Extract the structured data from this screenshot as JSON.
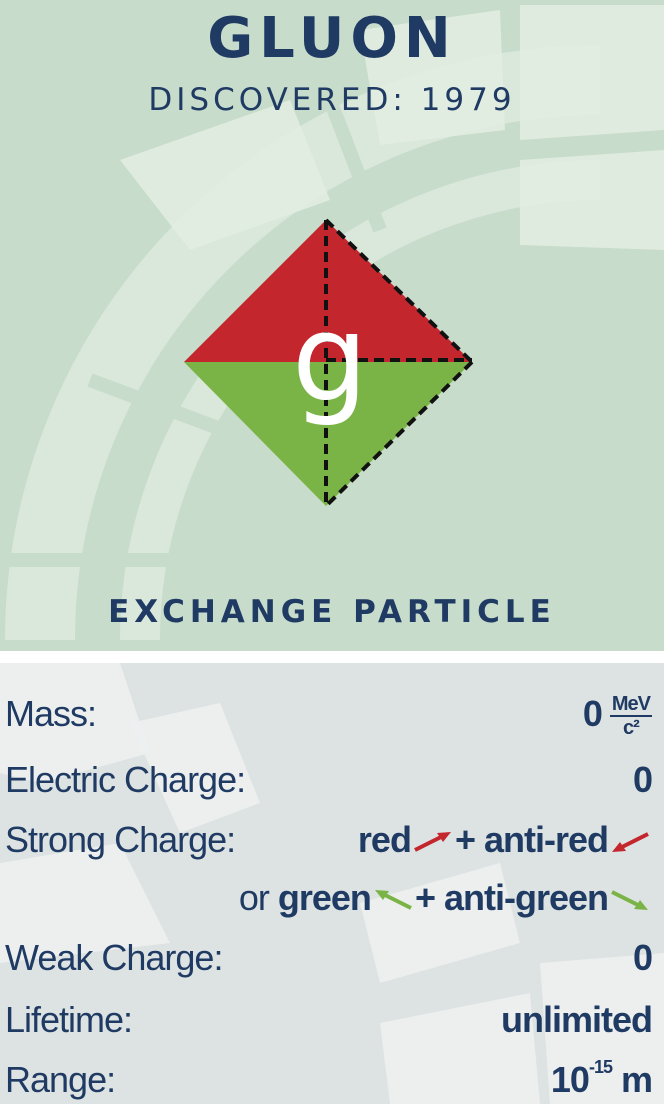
{
  "particle": {
    "name": "GLUON",
    "discovered": "DISCOVERED: 1979",
    "symbol": "g",
    "category": "EXCHANGE PARTICLE"
  },
  "colors": {
    "navy": "#1f3a63",
    "red": "#c4262e",
    "green": "#7bb446",
    "top_bg": "#c7dcca",
    "bottom_bg": "#dde3e2"
  },
  "properties": {
    "mass": {
      "label": "Mass:",
      "value": "0",
      "unit_num": "MeV",
      "unit_den": "c²"
    },
    "electric_charge": {
      "label": "Electric Charge:",
      "value": "0"
    },
    "strong_charge": {
      "label": "Strong Charge:",
      "line1_a": "red",
      "line1_b": "+ anti-red",
      "line2_or": "or",
      "line2_a": "green",
      "line2_b": "+ anti-green"
    },
    "weak_charge": {
      "label": "Weak Charge:",
      "value": "0"
    },
    "lifetime": {
      "label": "Lifetime:",
      "value": "unlimited"
    },
    "range": {
      "label": "Range:",
      "base": "10",
      "exp": "-15",
      "unit": "m"
    }
  }
}
